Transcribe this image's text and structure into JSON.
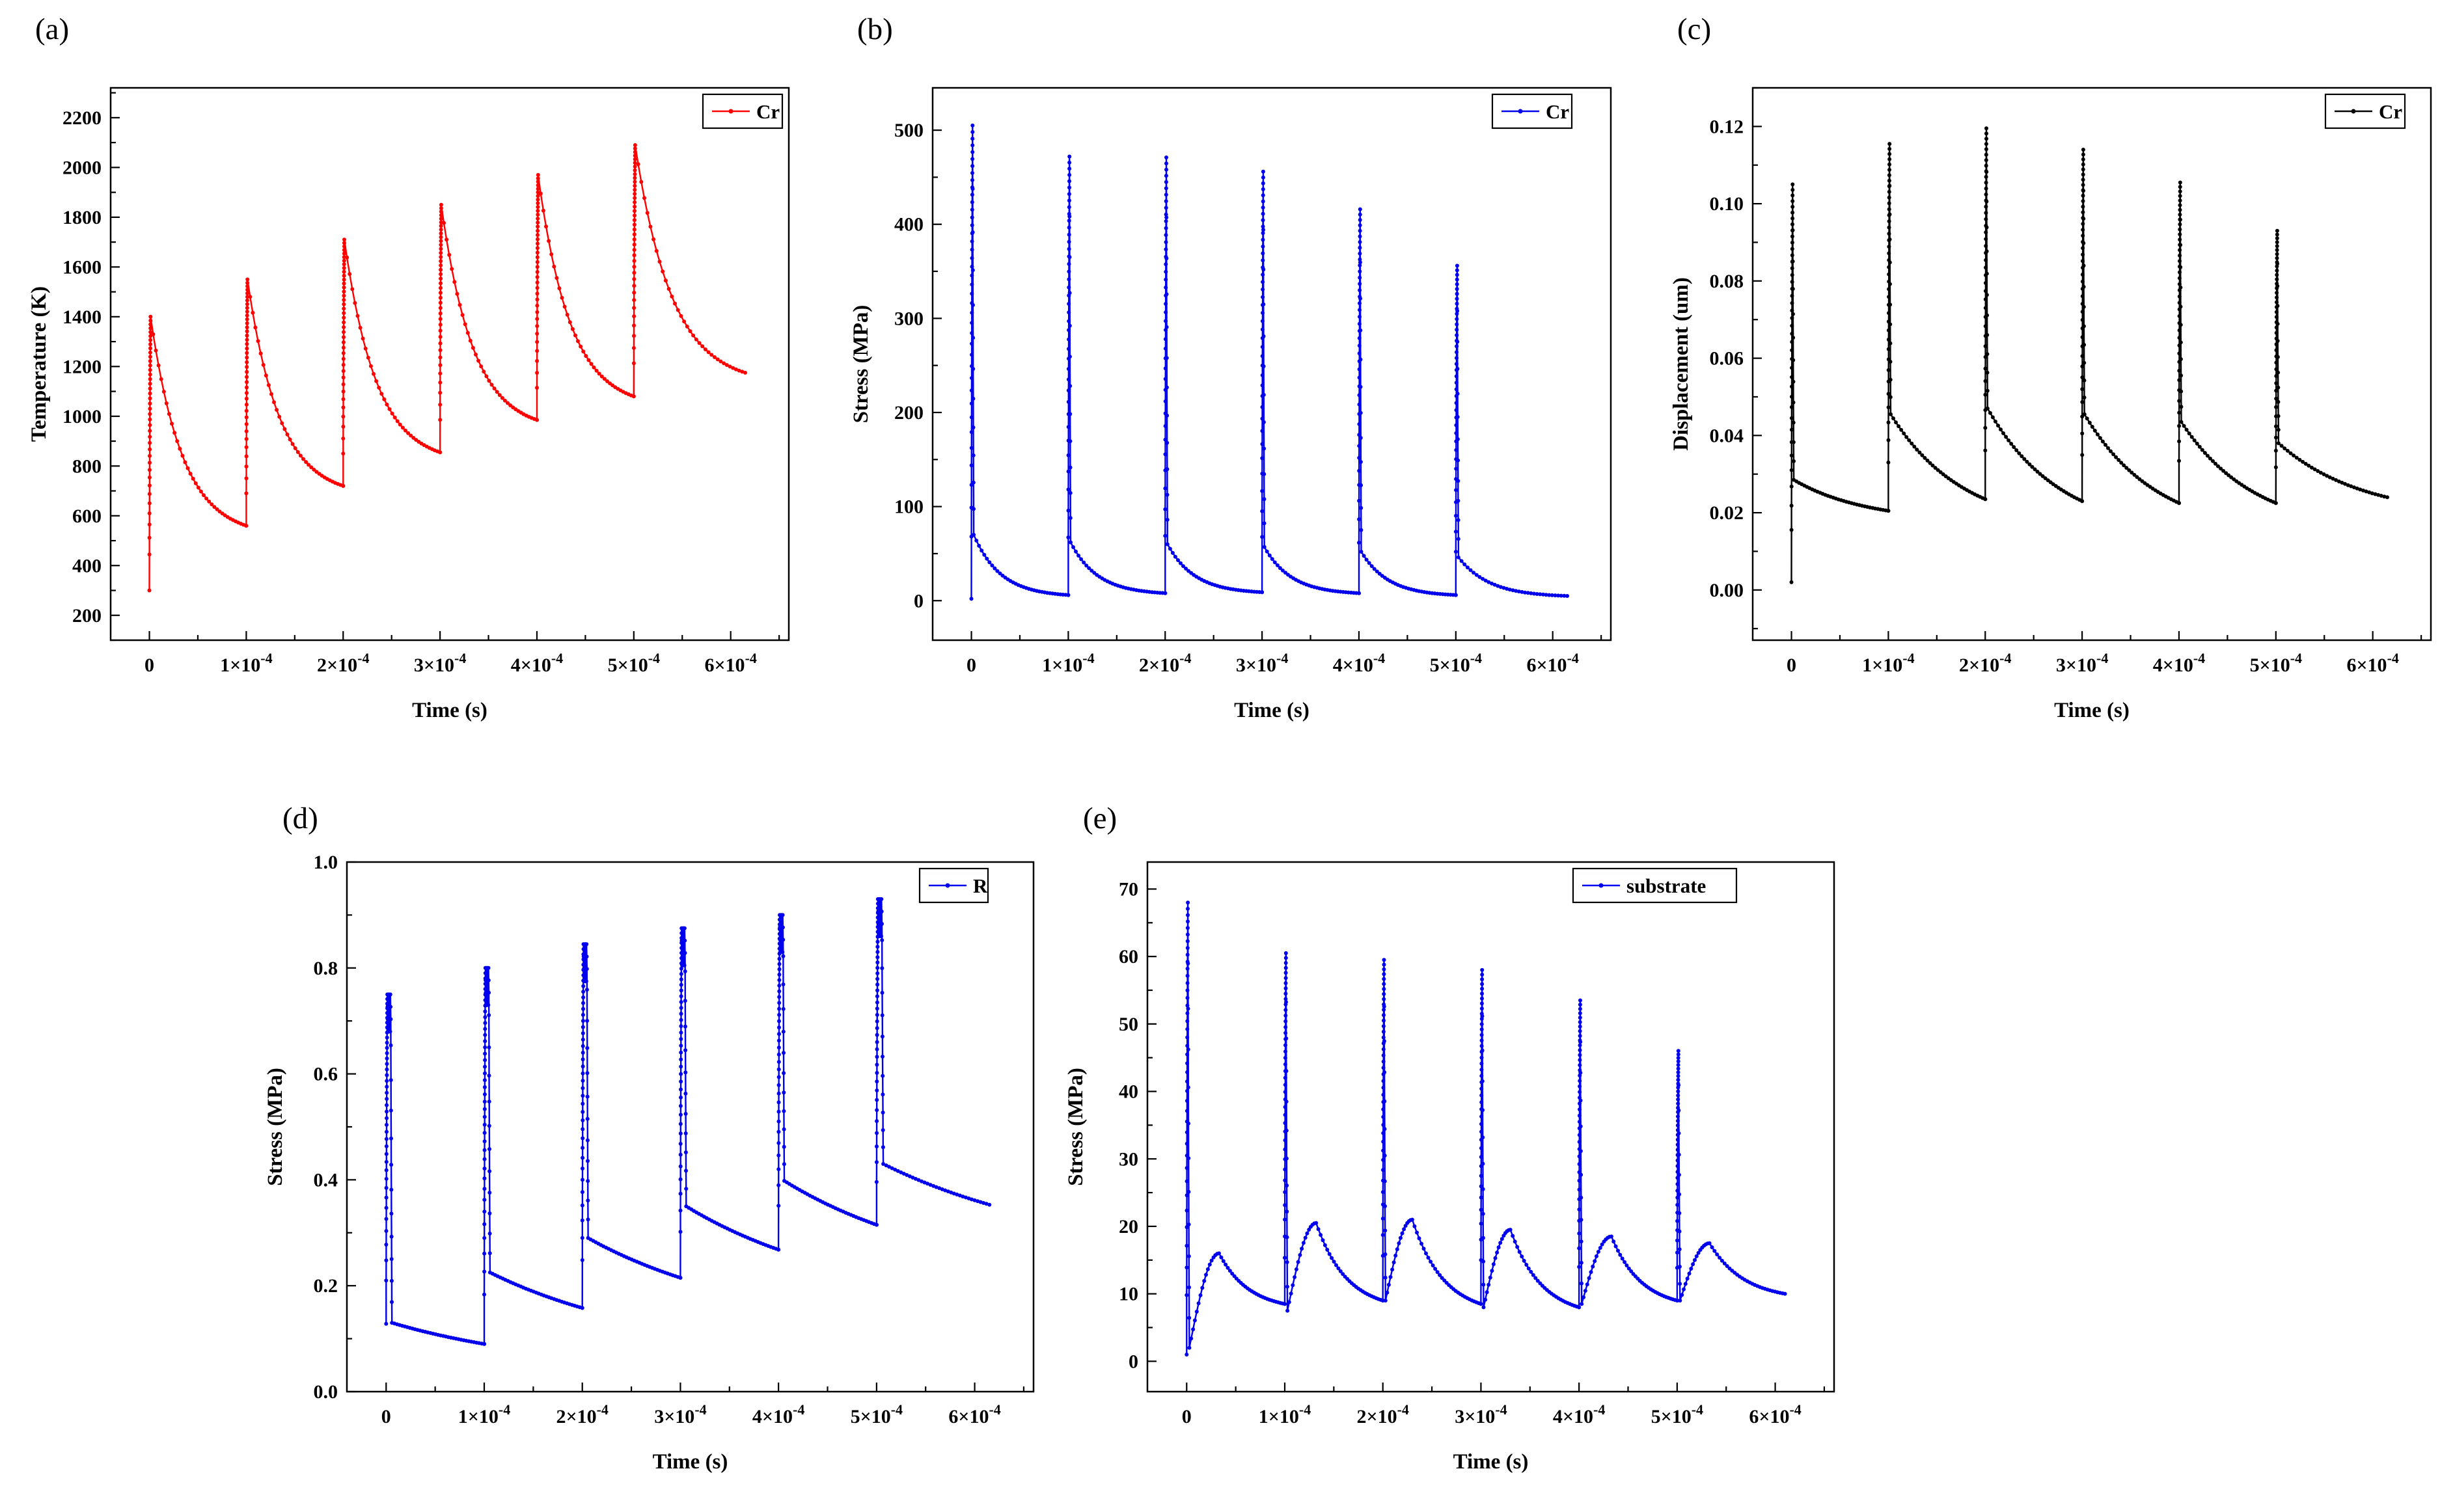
{
  "figure": {
    "background": "#ffffff"
  },
  "chart_data": [
    {
      "type": "line",
      "panel_label": "(a)",
      "series_name": "Cr",
      "color": "#ff0000",
      "xlabel": "Time (s)",
      "ylabel": "Temperature (K)",
      "legend_position": "top-right",
      "legend_offset_x": 10,
      "grid": false,
      "xlim": [
        -4e-05,
        0.00066
      ],
      "ylim": [
        100,
        2320
      ],
      "x_ticks": [
        {
          "v": 0,
          "label": "0"
        },
        {
          "v": 0.0001,
          "label": "1×10^-4"
        },
        {
          "v": 0.0002,
          "label": "2×10^-4"
        },
        {
          "v": 0.0003,
          "label": "3×10^-4"
        },
        {
          "v": 0.0004,
          "label": "4×10^-4"
        },
        {
          "v": 0.0005,
          "label": "5×10^-4"
        },
        {
          "v": 0.0006,
          "label": "6×10^-4"
        }
      ],
      "y_ticks": [
        {
          "v": 200,
          "label": "200"
        },
        {
          "v": 400,
          "label": "400"
        },
        {
          "v": 600,
          "label": "600"
        },
        {
          "v": 800,
          "label": "800"
        },
        {
          "v": 1000,
          "label": "1000"
        },
        {
          "v": 1200,
          "label": "1200"
        },
        {
          "v": 1400,
          "label": "1400"
        },
        {
          "v": 1600,
          "label": "1600"
        },
        {
          "v": 1800,
          "label": "1800"
        },
        {
          "v": 2000,
          "label": "2000"
        },
        {
          "v": 2200,
          "label": "2200"
        }
      ],
      "x_minor_step": 5e-05,
      "y_minor_step": 100,
      "pulse_period": 0.0001,
      "t_end": 0.000615,
      "model": "spike-decay",
      "decay_k": 3,
      "pulses": [
        {
          "t0": 0,
          "start": 300,
          "peak": 1400,
          "end": 560
        },
        {
          "t0": 0.0001,
          "peak": 1550,
          "end": 720
        },
        {
          "t0": 0.0002,
          "peak": 1710,
          "end": 855
        },
        {
          "t0": 0.0003,
          "peak": 1850,
          "end": 985
        },
        {
          "t0": 0.0004,
          "peak": 1970,
          "end": 1080
        },
        {
          "t0": 0.0005,
          "peak": 2090,
          "end": 1175
        }
      ]
    },
    {
      "type": "line",
      "panel_label": "(b)",
      "series_name": "Cr",
      "color": "#0000ee",
      "xlabel": "Time (s)",
      "ylabel": "Stress (MPa)",
      "legend_position": "top-right",
      "legend_offset_x": 60,
      "grid": false,
      "xlim": [
        -4e-05,
        0.00066
      ],
      "ylim": [
        -42,
        545
      ],
      "x_ticks": [
        {
          "v": 0,
          "label": "0"
        },
        {
          "v": 0.0001,
          "label": "1×10^-4"
        },
        {
          "v": 0.0002,
          "label": "2×10^-4"
        },
        {
          "v": 0.0003,
          "label": "3×10^-4"
        },
        {
          "v": 0.0004,
          "label": "4×10^-4"
        },
        {
          "v": 0.0005,
          "label": "5×10^-4"
        },
        {
          "v": 0.0006,
          "label": "6×10^-4"
        }
      ],
      "y_ticks": [
        {
          "v": 0,
          "label": "0"
        },
        {
          "v": 100,
          "label": "100"
        },
        {
          "v": 200,
          "label": "200"
        },
        {
          "v": 300,
          "label": "300"
        },
        {
          "v": 400,
          "label": "400"
        },
        {
          "v": 500,
          "label": "500"
        }
      ],
      "x_minor_step": 5e-05,
      "y_minor_step": 50,
      "pulse_period": 0.0001,
      "t_end": 0.000615,
      "model": "spike-decay",
      "decay_k": 3.5,
      "pulses": [
        {
          "t0": 0,
          "start": 2,
          "peak": 505,
          "knee": 70,
          "end": 6
        },
        {
          "t0": 0.0001,
          "peak": 472,
          "knee": 62,
          "end": 8
        },
        {
          "t0": 0.0002,
          "peak": 471,
          "knee": 60,
          "end": 9
        },
        {
          "t0": 0.0003,
          "peak": 456,
          "knee": 57,
          "end": 8
        },
        {
          "t0": 0.0004,
          "peak": 416,
          "knee": 52,
          "end": 6
        },
        {
          "t0": 0.0005,
          "peak": 356,
          "knee": 46,
          "end": 5
        }
      ]
    },
    {
      "type": "line",
      "panel_label": "(c)",
      "series_name": "Cr",
      "color": "#000000",
      "xlabel": "Time (s)",
      "ylabel": "Displacement (um)",
      "legend_position": "top-right",
      "legend_offset_x": 40,
      "grid": false,
      "xlim": [
        -4e-05,
        0.00066
      ],
      "ylim": [
        -0.013,
        0.13
      ],
      "x_ticks": [
        {
          "v": 0,
          "label": "0"
        },
        {
          "v": 0.0001,
          "label": "1×10^-4"
        },
        {
          "v": 0.0002,
          "label": "2×10^-4"
        },
        {
          "v": 0.0003,
          "label": "3×10^-4"
        },
        {
          "v": 0.0004,
          "label": "4×10^-4"
        },
        {
          "v": 0.0005,
          "label": "5×10^-4"
        },
        {
          "v": 0.0006,
          "label": "6×10^-4"
        }
      ],
      "y_ticks": [
        {
          "v": 0,
          "label": "0.00"
        },
        {
          "v": 0.02,
          "label": "0.02"
        },
        {
          "v": 0.04,
          "label": "0.04"
        },
        {
          "v": 0.06,
          "label": "0.06"
        },
        {
          "v": 0.08,
          "label": "0.08"
        },
        {
          "v": 0.1,
          "label": "0.10"
        },
        {
          "v": 0.12,
          "label": "0.12"
        }
      ],
      "x_minor_step": 5e-05,
      "y_minor_step": 0.01,
      "pulse_period": 0.0001,
      "t_end": 0.000615,
      "model": "spike-decay",
      "decay_k": 1.3,
      "pulses": [
        {
          "t0": 0,
          "start": 0.002,
          "peak": 0.105,
          "knee": 0.0285,
          "end": 0.0205
        },
        {
          "t0": 0.0001,
          "peak": 0.1155,
          "knee": 0.0455,
          "end": 0.0235
        },
        {
          "t0": 0.0002,
          "peak": 0.1195,
          "knee": 0.047,
          "end": 0.023
        },
        {
          "t0": 0.0003,
          "peak": 0.114,
          "knee": 0.0455,
          "end": 0.0225
        },
        {
          "t0": 0.0004,
          "peak": 0.1055,
          "knee": 0.0435,
          "end": 0.0225
        },
        {
          "t0": 0.0005,
          "peak": 0.093,
          "knee": 0.038,
          "end": 0.024
        }
      ]
    },
    {
      "type": "line",
      "panel_label": "(d)",
      "series_name": "R",
      "color": "#0000ee",
      "xlabel": "Time (s)",
      "ylabel": "Stress (MPa)",
      "legend_position": "top-right",
      "legend_offset_x": 70,
      "grid": false,
      "xlim": [
        -4e-05,
        0.00066
      ],
      "ylim": [
        0,
        1.0
      ],
      "x_ticks": [
        {
          "v": 0,
          "label": "0"
        },
        {
          "v": 0.0001,
          "label": "1×10^-4"
        },
        {
          "v": 0.0002,
          "label": "2×10^-4"
        },
        {
          "v": 0.0003,
          "label": "3×10^-4"
        },
        {
          "v": 0.0004,
          "label": "4×10^-4"
        },
        {
          "v": 0.0005,
          "label": "5×10^-4"
        },
        {
          "v": 0.0006,
          "label": "6×10^-4"
        }
      ],
      "y_ticks": [
        {
          "v": 0,
          "label": "0.0"
        },
        {
          "v": 0.2,
          "label": "0.2"
        },
        {
          "v": 0.4,
          "label": "0.4"
        },
        {
          "v": 0.6,
          "label": "0.6"
        },
        {
          "v": 0.8,
          "label": "0.8"
        },
        {
          "v": 1.0,
          "label": "1.0"
        }
      ],
      "x_minor_step": 5e-05,
      "y_minor_step": 0.1,
      "pulse_period": 0.0001,
      "t_end": 0.000615,
      "model": "spike-decay",
      "spike_hold": true,
      "hold_depth": 0.07,
      "decay_k": 0.55,
      "pulses": [
        {
          "t0": 0,
          "start": 0.128,
          "peak": 0.75,
          "knee": 0.13,
          "end": 0.09
        },
        {
          "t0": 0.0001,
          "peak": 0.8,
          "knee": 0.225,
          "end": 0.158
        },
        {
          "t0": 0.0002,
          "peak": 0.845,
          "knee": 0.29,
          "end": 0.215
        },
        {
          "t0": 0.0003,
          "peak": 0.875,
          "knee": 0.35,
          "end": 0.268
        },
        {
          "t0": 0.0004,
          "peak": 0.9,
          "knee": 0.398,
          "end": 0.315
        },
        {
          "t0": 0.0005,
          "peak": 0.93,
          "knee": 0.43,
          "end": 0.353
        }
      ]
    },
    {
      "type": "line",
      "panel_label": "(e)",
      "series_name": "substrate",
      "color": "#0000ee",
      "xlabel": "Time (s)",
      "ylabel": "Stress (MPa)",
      "legend_position": "top-right",
      "legend_offset_x": 150,
      "grid": false,
      "xlim": [
        -4e-05,
        0.00066
      ],
      "ylim": [
        -4.5,
        74
      ],
      "x_ticks": [
        {
          "v": 0,
          "label": "0"
        },
        {
          "v": 0.0001,
          "label": "1×10^-4"
        },
        {
          "v": 0.0002,
          "label": "2×10^-4"
        },
        {
          "v": 0.0003,
          "label": "3×10^-4"
        },
        {
          "v": 0.0004,
          "label": "4×10^-4"
        },
        {
          "v": 0.0005,
          "label": "5×10^-4"
        },
        {
          "v": 0.0006,
          "label": "6×10^-4"
        }
      ],
      "y_ticks": [
        {
          "v": 0,
          "label": "0"
        },
        {
          "v": 10,
          "label": "10"
        },
        {
          "v": 20,
          "label": "20"
        },
        {
          "v": 30,
          "label": "30"
        },
        {
          "v": 40,
          "label": "40"
        },
        {
          "v": 50,
          "label": "50"
        },
        {
          "v": 60,
          "label": "60"
        },
        {
          "v": 70,
          "label": "70"
        }
      ],
      "x_minor_step": 5e-05,
      "y_minor_step": 5,
      "pulse_period": 0.0001,
      "t_end": 0.00061,
      "model": "spike-dip-hump",
      "hump_decay_k": 2.2,
      "pulses": [
        {
          "t0": 0,
          "start": 1,
          "peak": 68,
          "dip": 2,
          "hump": 16,
          "hump_t": 0.33,
          "end": 8.5
        },
        {
          "t0": 0.0001,
          "peak": 60.5,
          "dip": 7.5,
          "hump": 20.5,
          "hump_t": 0.32,
          "end": 9
        },
        {
          "t0": 0.0002,
          "peak": 59.5,
          "dip": 9,
          "hump": 21,
          "hump_t": 0.3,
          "end": 8.5
        },
        {
          "t0": 0.0003,
          "peak": 58,
          "dip": 8,
          "hump": 19.5,
          "hump_t": 0.3,
          "end": 8
        },
        {
          "t0": 0.0004,
          "peak": 53.5,
          "dip": 8.5,
          "hump": 18.5,
          "hump_t": 0.33,
          "end": 9
        },
        {
          "t0": 0.0005,
          "peak": 46,
          "dip": 9,
          "hump": 17.5,
          "hump_t": 0.3,
          "end": 10
        }
      ]
    }
  ]
}
